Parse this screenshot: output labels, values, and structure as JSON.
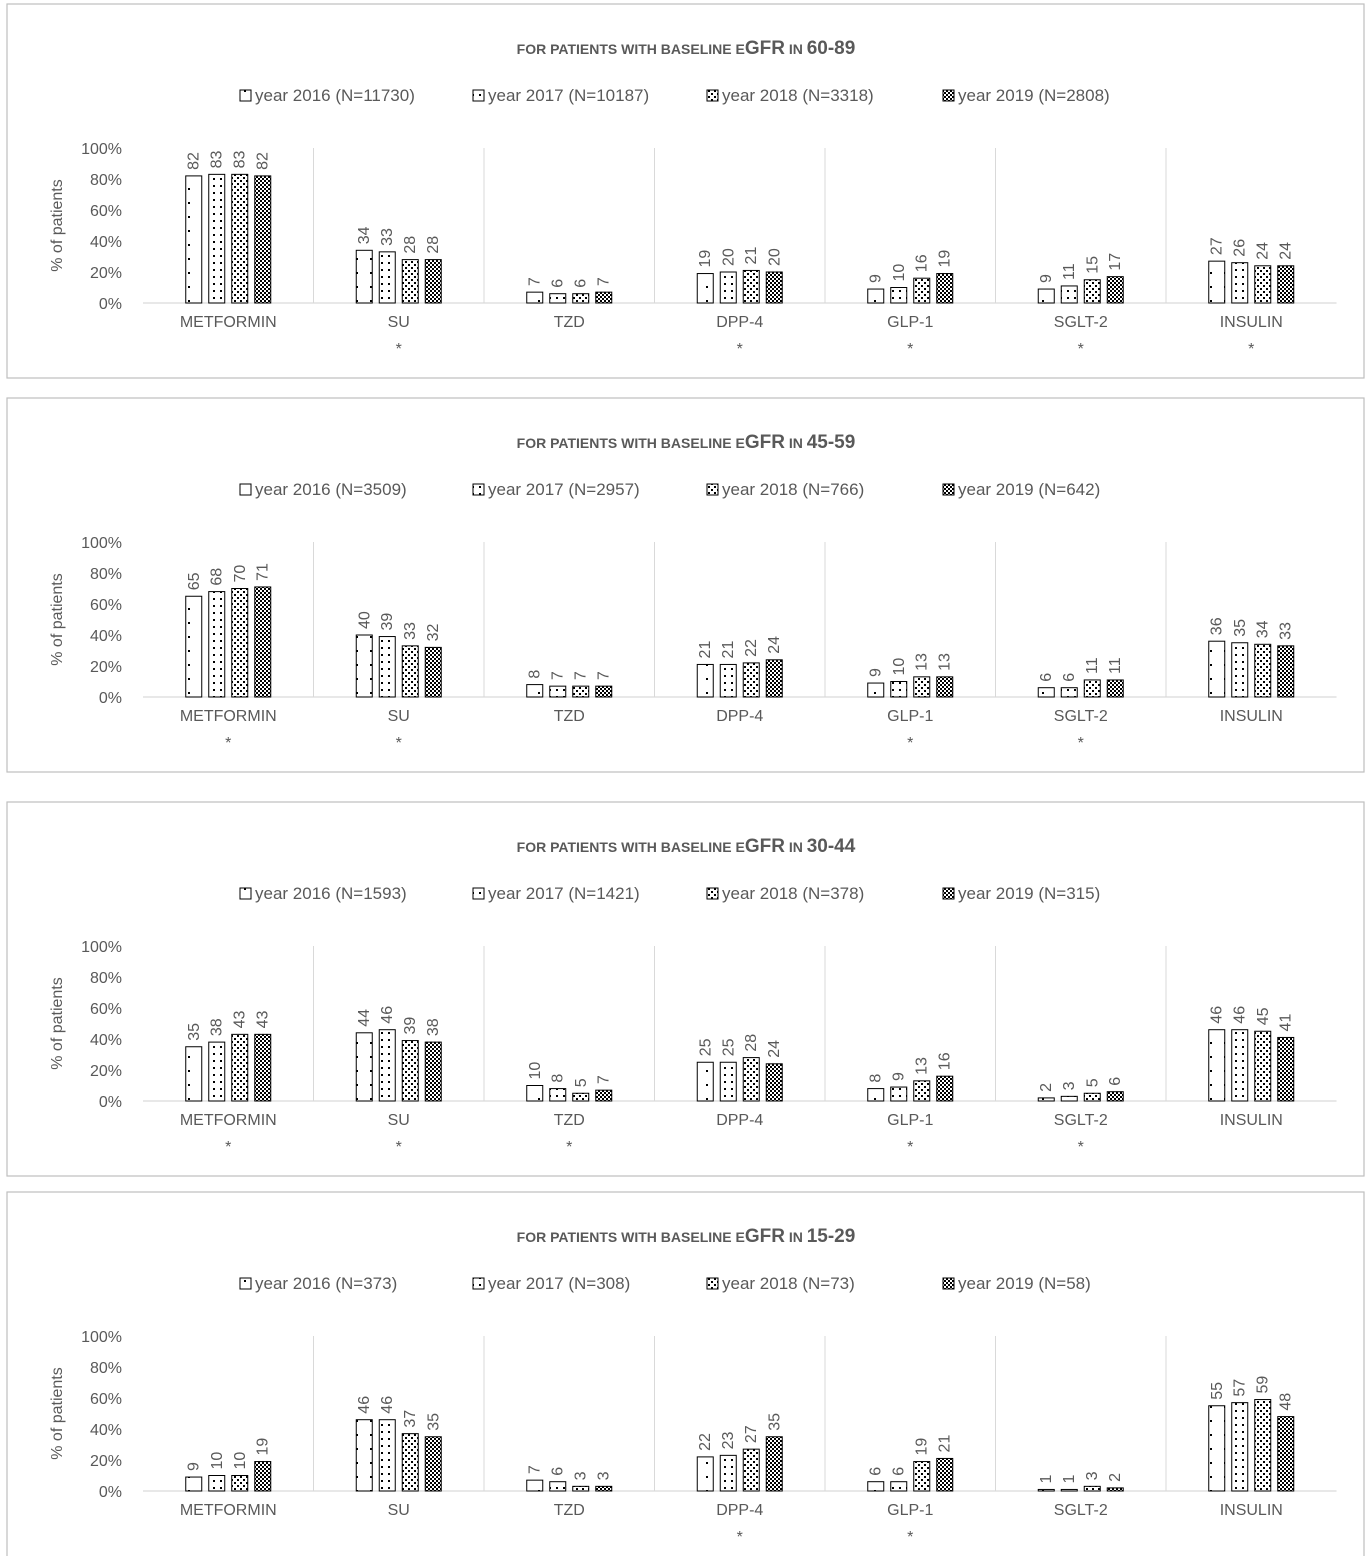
{
  "chart_data": [
    {
      "type": "bar",
      "title_prefix": "FOR PATIENTS WITH BASELINE E",
      "title_big": "GFR",
      "title_mid": " IN ",
      "title_range": "60-89",
      "legend": [
        "year 2016 (N=11730)",
        "year 2017 (N=10187)",
        "year 2018 (N=3318)",
        "year 2019 (N=2808)"
      ],
      "categories": [
        "METFORMIN",
        "SU",
        "TZD",
        "DPP-4",
        "GLP-1",
        "SGLT-2",
        "INSULIN"
      ],
      "significance": [
        "",
        "*",
        "",
        "*",
        "*",
        "*",
        "*"
      ],
      "series": [
        {
          "name": "year 2016 (N=11730)",
          "values": [
            82,
            34,
            7,
            19,
            9,
            9,
            27
          ]
        },
        {
          "name": "year 2017 (N=10187)",
          "values": [
            83,
            33,
            6,
            20,
            10,
            11,
            26
          ]
        },
        {
          "name": "year 2018 (N=3318)",
          "values": [
            83,
            28,
            6,
            21,
            16,
            15,
            24
          ]
        },
        {
          "name": "year 2019 (N=2808)",
          "values": [
            82,
            28,
            7,
            20,
            19,
            17,
            24
          ]
        }
      ],
      "ylabel": "% of patients",
      "yticks": [
        "0%",
        "20%",
        "40%",
        "60%",
        "80%",
        "100%"
      ],
      "ylim": [
        0,
        100
      ],
      "grid": false,
      "legend_position": "top"
    },
    {
      "type": "bar",
      "title_prefix": "FOR PATIENTS WITH BASELINE E",
      "title_big": "GFR",
      "title_mid": " IN ",
      "title_range": "45-59",
      "legend": [
        "year 2016 (N=3509)",
        "year 2017 (N=2957)",
        "year 2018 (N=766)",
        "year 2019 (N=642)"
      ],
      "categories": [
        "METFORMIN",
        "SU",
        "TZD",
        "DPP-4",
        "GLP-1",
        "SGLT-2",
        "INSULIN"
      ],
      "significance": [
        "*",
        "*",
        "",
        "",
        "*",
        "*",
        ""
      ],
      "series": [
        {
          "name": "year 2016 (N=3509)",
          "values": [
            65,
            40,
            8,
            21,
            9,
            6,
            36
          ]
        },
        {
          "name": "year 2017 (N=2957)",
          "values": [
            68,
            39,
            7,
            21,
            10,
            6,
            35
          ]
        },
        {
          "name": "year 2018 (N=766)",
          "values": [
            70,
            33,
            7,
            22,
            13,
            11,
            34
          ]
        },
        {
          "name": "year 2019 (N=642)",
          "values": [
            71,
            32,
            7,
            24,
            13,
            11,
            33
          ]
        }
      ],
      "ylabel": "% of patients",
      "yticks": [
        "0%",
        "20%",
        "40%",
        "60%",
        "80%",
        "100%"
      ],
      "ylim": [
        0,
        100
      ],
      "grid": false,
      "legend_position": "top"
    },
    {
      "type": "bar",
      "title_prefix": "FOR PATIENTS WITH BASELINE E",
      "title_big": "GFR",
      "title_mid": " IN ",
      "title_range": "30-44",
      "legend": [
        "year 2016 (N=1593)",
        "year 2017 (N=1421)",
        "year 2018 (N=378)",
        "year 2019 (N=315)"
      ],
      "categories": [
        "METFORMIN",
        "SU",
        "TZD",
        "DPP-4",
        "GLP-1",
        "SGLT-2",
        "INSULIN"
      ],
      "significance": [
        "*",
        "*",
        "*",
        "",
        "*",
        "*",
        ""
      ],
      "series": [
        {
          "name": "year 2016 (N=1593)",
          "values": [
            35,
            44,
            10,
            25,
            8,
            2,
            46
          ]
        },
        {
          "name": "year 2017 (N=1421)",
          "values": [
            38,
            46,
            8,
            25,
            9,
            3,
            46
          ]
        },
        {
          "name": "year 2018 (N=378)",
          "values": [
            43,
            39,
            5,
            28,
            13,
            5,
            45
          ]
        },
        {
          "name": "year 2019 (N=315)",
          "values": [
            43,
            38,
            7,
            24,
            16,
            6,
            41
          ]
        }
      ],
      "ylabel": "% of patients",
      "yticks": [
        "0%",
        "20%",
        "40%",
        "60%",
        "80%",
        "100%"
      ],
      "ylim": [
        0,
        100
      ],
      "grid": false,
      "legend_position": "top"
    },
    {
      "type": "bar",
      "title_prefix": "FOR PATIENTS WITH BASELINE E",
      "title_big": "GFR",
      "title_mid": " IN ",
      "title_range": "15-29",
      "legend": [
        "year 2016 (N=373)",
        "year 2017 (N=308)",
        "year 2018 (N=73)",
        "year 2019 (N=58)"
      ],
      "categories": [
        "METFORMIN",
        "SU",
        "TZD",
        "DPP-4",
        "GLP-1",
        "SGLT-2",
        "INSULIN"
      ],
      "significance": [
        "",
        "",
        "",
        "*",
        "*",
        "",
        ""
      ],
      "series": [
        {
          "name": "year 2016 (N=373)",
          "values": [
            9,
            46,
            7,
            22,
            6,
            1,
            55
          ]
        },
        {
          "name": "year 2017 (N=308)",
          "values": [
            10,
            46,
            6,
            23,
            6,
            1,
            57
          ]
        },
        {
          "name": "year 2018 (N=73)",
          "values": [
            10,
            37,
            3,
            27,
            19,
            3,
            59
          ]
        },
        {
          "name": "year 2019 (N=58)",
          "values": [
            19,
            35,
            3,
            35,
            21,
            2,
            48
          ]
        }
      ],
      "ylabel": "% of patients",
      "yticks": [
        "0%",
        "20%",
        "40%",
        "60%",
        "80%",
        "100%"
      ],
      "ylim": [
        0,
        100
      ],
      "grid": false,
      "legend_position": "top"
    }
  ]
}
